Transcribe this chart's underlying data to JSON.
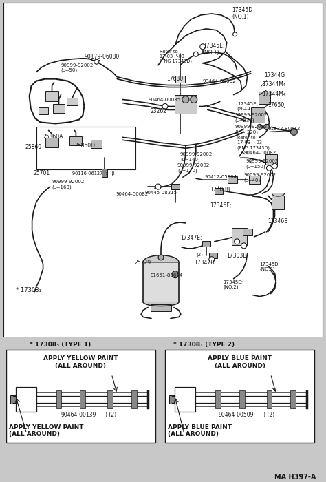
{
  "bg_color": "#f0f0f0",
  "diagram_bg": "#ffffff",
  "line_color": "#1a1a1a",
  "footnote": "MA H397-A",
  "type1_label": "* 17308₃ (TYPE 1)",
  "type2_label": "* 17308₁ (TYPE 2)",
  "type1_part": "90464-00139",
  "type2_part": "90464-00509",
  "type1_paint_top": "APPLY YELLOW PAINT\n(ALL AROUND)",
  "type1_paint_bot": "APPLY YELLOW PAINT\n(ALL AROUND)",
  "type2_paint_top": "APPLY BLUE PAINT\n(ALL AROUND)",
  "type2_paint_bot": "APPLY BLUE PAINT\n(ALL AROUND)",
  "suffix": ") (2)"
}
